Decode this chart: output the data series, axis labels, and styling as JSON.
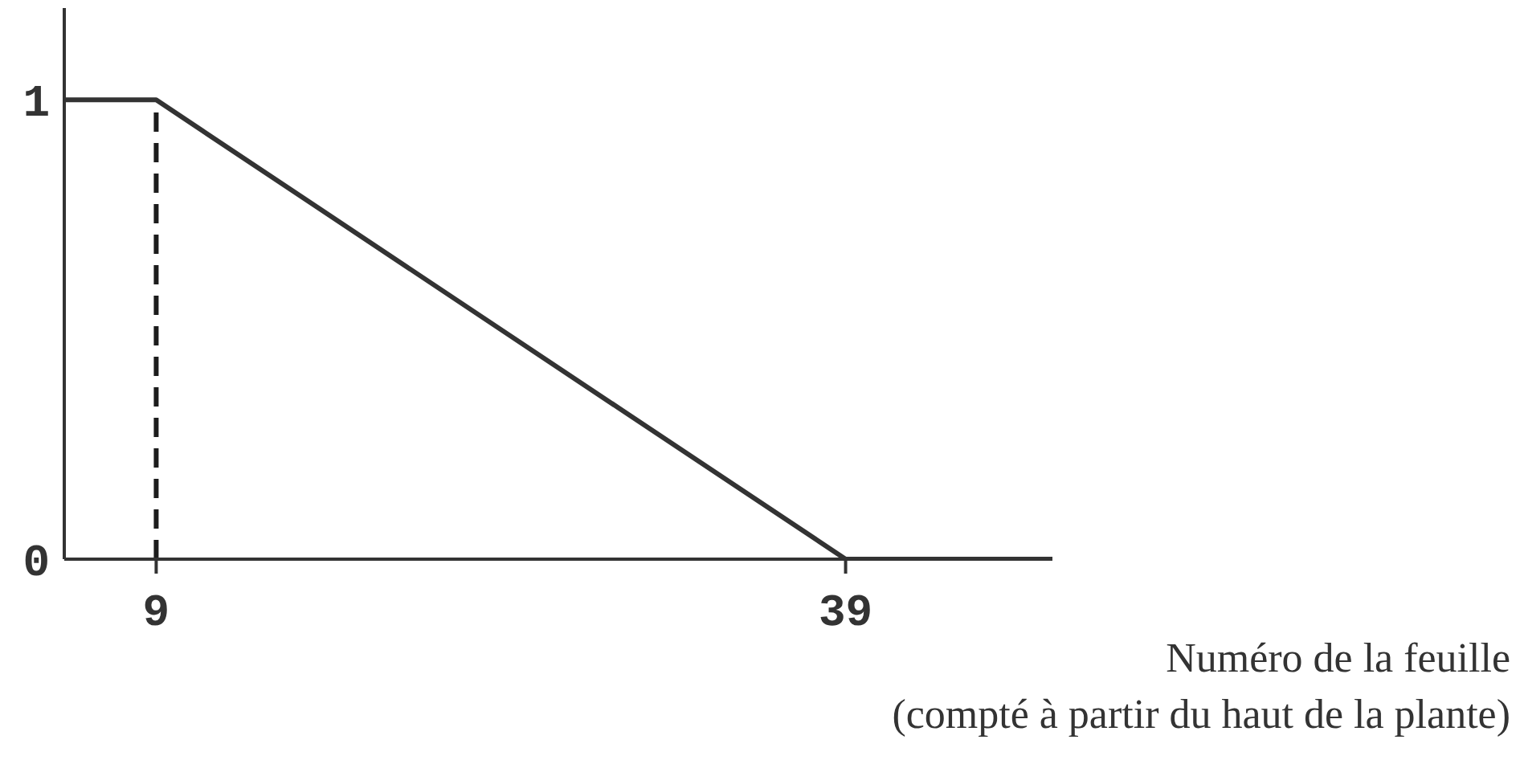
{
  "chart_data": {
    "type": "line",
    "xlabel": "Numéro de la feuille\n(compté à partir du haut de la plante)",
    "x": [
      5,
      9,
      39,
      48
    ],
    "series": [
      {
        "values": [
          1,
          1,
          0,
          0
        ],
        "color": "#333333"
      }
    ],
    "ref_lines": [
      {
        "axis": "x",
        "value": 9,
        "color": "#1c1c1c",
        "line_style": "dashed"
      }
    ],
    "xlim": [
      5,
      48
    ],
    "xticks": [
      9,
      39
    ],
    "ylim": [
      0,
      1.2
    ],
    "yticks": [
      0,
      1
    ],
    "line_style": "solid"
  }
}
